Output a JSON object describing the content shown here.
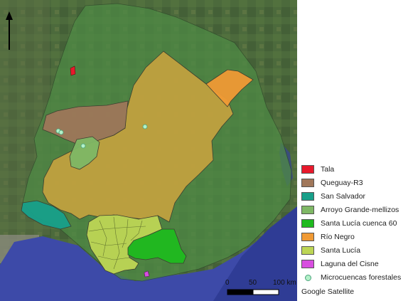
{
  "legend": {
    "items": [
      {
        "label": "Tala",
        "color": "#e8192c",
        "shape": "box"
      },
      {
        "label": "Queguay-R3",
        "color": "#a0775a",
        "shape": "box"
      },
      {
        "label": "San Salvador",
        "color": "#18a08a",
        "shape": "box"
      },
      {
        "label": "Arroyo Grande-mellizos",
        "color": "#7fb865",
        "shape": "box"
      },
      {
        "label": "Santa Lucía cuenca 60",
        "color": "#1fba1f",
        "shape": "box"
      },
      {
        "label": "Río Negro",
        "color": "#f09a35",
        "shape": "box"
      },
      {
        "label": "Santa Lucía",
        "color": "#bdd655",
        "shape": "box"
      },
      {
        "label": "Laguna del Cisne",
        "color": "#d84ee0",
        "shape": "box"
      },
      {
        "label": "Microcuencas forestales",
        "color": "#b3f0c8",
        "shape": "dot"
      }
    ]
  },
  "scale_bar": {
    "ticks": [
      "0",
      "50",
      "100 km"
    ]
  },
  "attribution": "Google Satellite",
  "north_arrow": "north-arrow-icon"
}
